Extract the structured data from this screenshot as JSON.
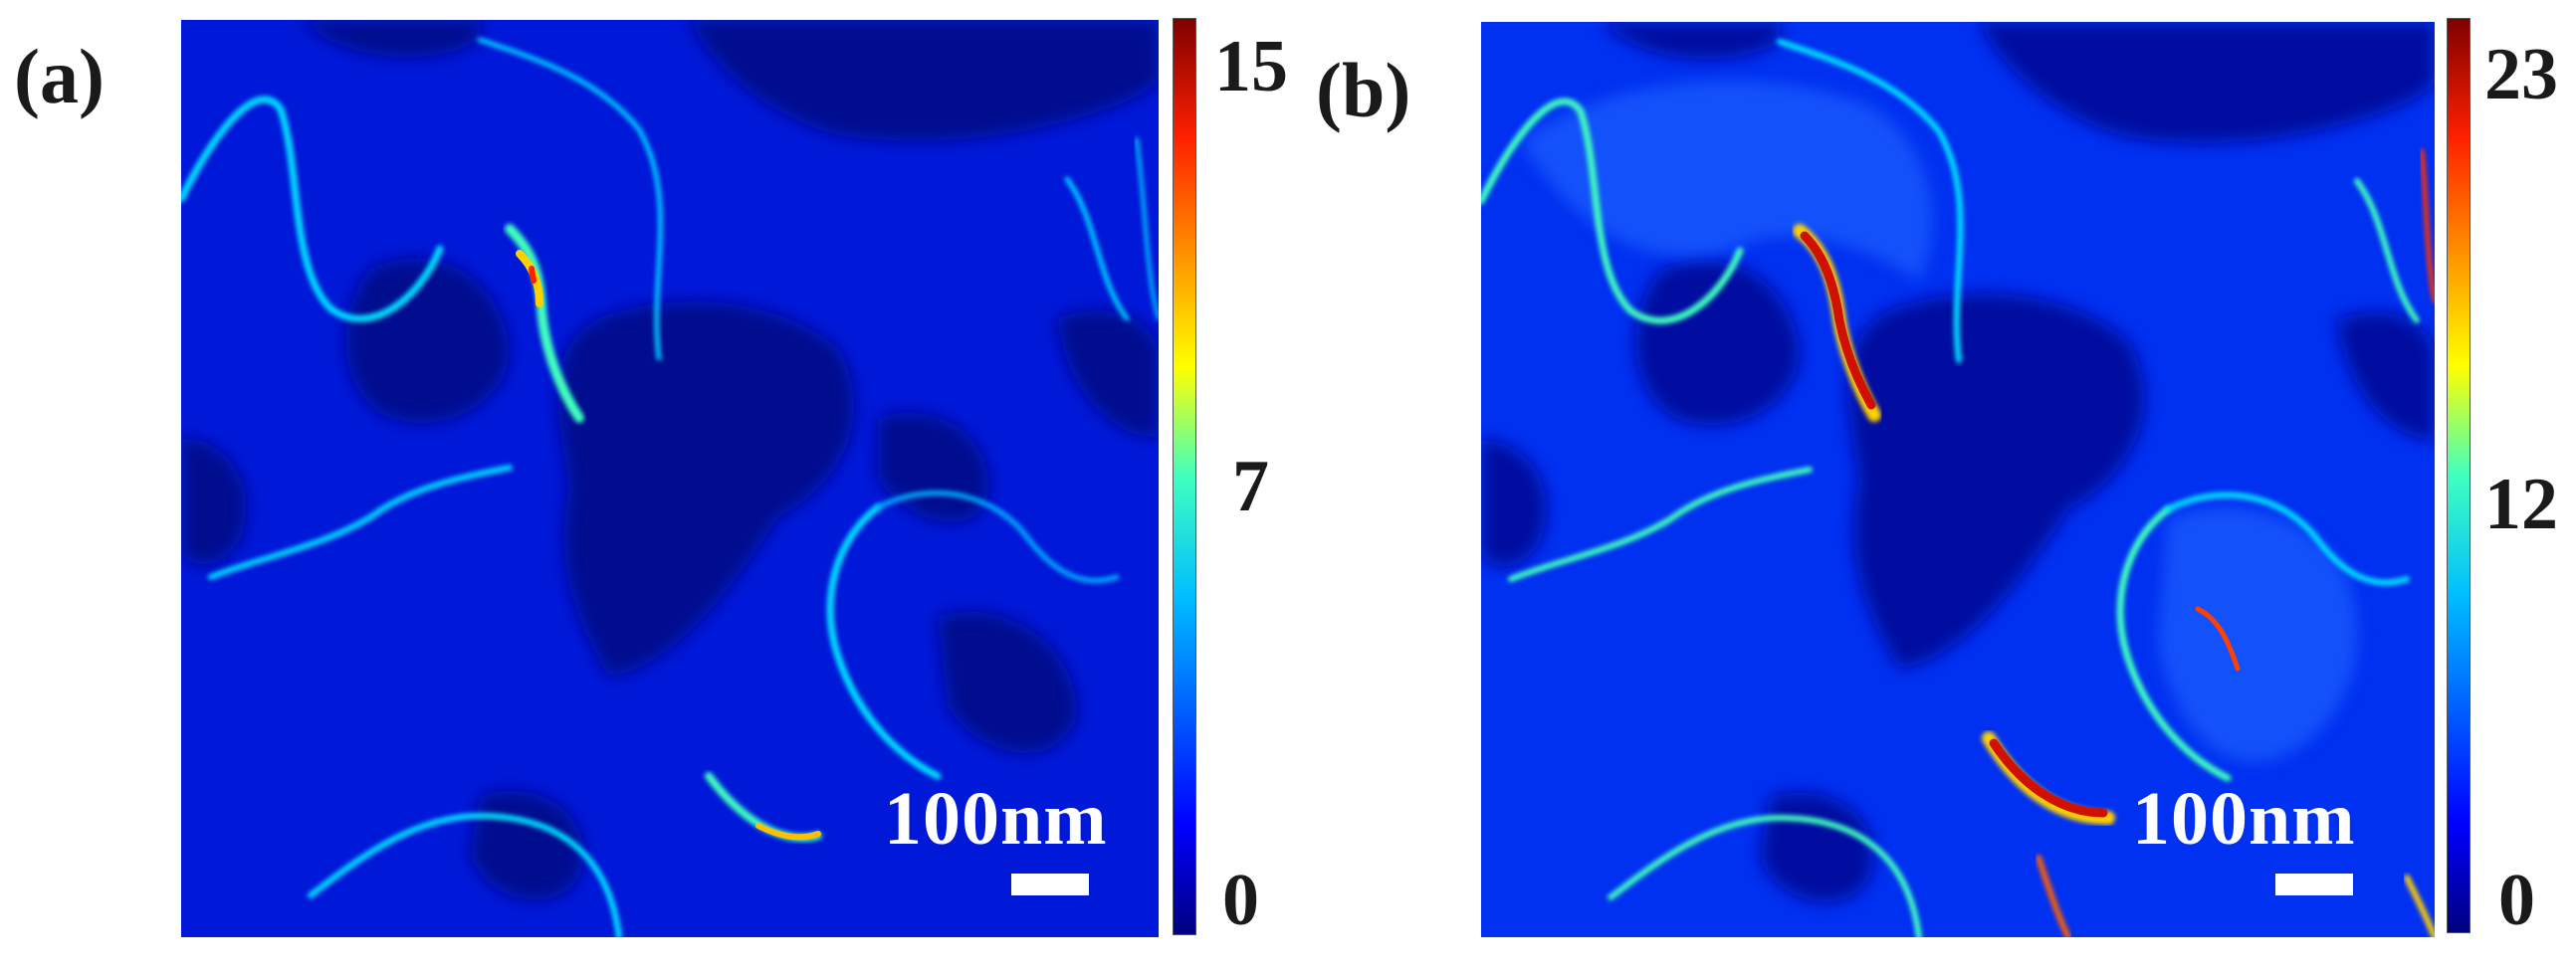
{
  "panels": [
    {
      "label": "(a)",
      "scale_bar_text": "100nm",
      "colorbar": {
        "max": "15",
        "mid": "7",
        "min": "0"
      }
    },
    {
      "label": "(b)",
      "scale_bar_text": "100nm",
      "colorbar": {
        "max": "23",
        "mid": "12",
        "min": "0"
      }
    }
  ],
  "colormap": [
    "#00007f",
    "#0000ff",
    "#00ffff",
    "#ffff00",
    "#ff0000",
    "#7f0000"
  ]
}
